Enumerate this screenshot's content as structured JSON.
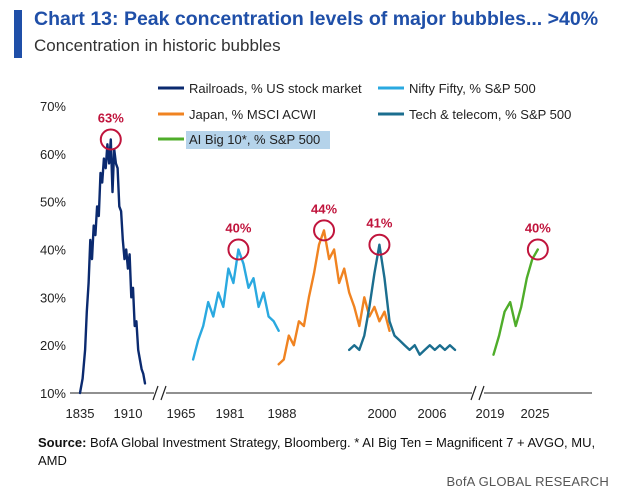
{
  "header": {
    "title": "Chart 13: Peak concentration levels of major bubbles... >40%",
    "subtitle": "Concentration in historic bubbles"
  },
  "footer": {
    "source_label": "Source:",
    "source_text": " BofA Global Investment Strategy, Bloomberg. * AI Big Ten = Magnificent 7 + AVGO, MU, AMD",
    "brand": "BofA GLOBAL RESEARCH"
  },
  "chart_data": {
    "type": "line",
    "title": "Chart 13: Peak concentration levels of major bubbles... >40%",
    "subtitle": "Concentration in historic bubbles",
    "xlabel": "",
    "ylabel": "",
    "ylim": [
      10,
      70
    ],
    "y_ticks": [
      "10%",
      "20%",
      "30%",
      "40%",
      "50%",
      "60%",
      "70%"
    ],
    "x_ticks": [
      "1835",
      "1910",
      "1965",
      "1981",
      "1988",
      "2000",
      "2006",
      "2019",
      "2025"
    ],
    "x_axis_broken": true,
    "grid": false,
    "legend_position": "top",
    "series": [
      {
        "name": "Railroads, % US stock market",
        "color": "#0b2a6f",
        "peak_label": "63%",
        "points": [
          [
            1835,
            10
          ],
          [
            1838,
            13
          ],
          [
            1841,
            19
          ],
          [
            1843,
            27
          ],
          [
            1845,
            33
          ],
          [
            1847,
            42
          ],
          [
            1849,
            38
          ],
          [
            1851,
            45
          ],
          [
            1853,
            43
          ],
          [
            1855,
            49
          ],
          [
            1857,
            47
          ],
          [
            1859,
            56
          ],
          [
            1861,
            54
          ],
          [
            1863,
            59
          ],
          [
            1865,
            57
          ],
          [
            1867,
            62
          ],
          [
            1869,
            58
          ],
          [
            1871,
            63
          ],
          [
            1873,
            52
          ],
          [
            1875,
            61
          ],
          [
            1877,
            58
          ],
          [
            1879,
            57
          ],
          [
            1881,
            49
          ],
          [
            1883,
            48
          ],
          [
            1885,
            42
          ],
          [
            1887,
            38
          ],
          [
            1889,
            40
          ],
          [
            1891,
            36
          ],
          [
            1893,
            39
          ],
          [
            1895,
            30
          ],
          [
            1897,
            32
          ],
          [
            1899,
            24
          ],
          [
            1901,
            25
          ],
          [
            1903,
            19
          ],
          [
            1905,
            17
          ],
          [
            1907,
            15
          ],
          [
            1909,
            14
          ],
          [
            1911,
            12
          ]
        ]
      },
      {
        "name": "Nifty Fifty, % S&P 500",
        "color": "#2aa9e0",
        "peak_label": "40%",
        "points": [
          [
            1963,
            17
          ],
          [
            1964,
            21
          ],
          [
            1965,
            24
          ],
          [
            1966,
            29
          ],
          [
            1967,
            26
          ],
          [
            1968,
            31
          ],
          [
            1969,
            28
          ],
          [
            1970,
            36
          ],
          [
            1971,
            33
          ],
          [
            1972,
            40
          ],
          [
            1973,
            37
          ],
          [
            1974,
            32
          ],
          [
            1975,
            34
          ],
          [
            1976,
            28
          ],
          [
            1977,
            31
          ],
          [
            1978,
            26
          ],
          [
            1979,
            25
          ],
          [
            1980,
            23
          ]
        ]
      },
      {
        "name": "Japan, % MSCI ACWI",
        "color": "#f08321",
        "peak_label": "44%",
        "points": [
          [
            1980,
            16
          ],
          [
            1981,
            17
          ],
          [
            1982,
            22
          ],
          [
            1983,
            20
          ],
          [
            1984,
            25
          ],
          [
            1985,
            24
          ],
          [
            1986,
            30
          ],
          [
            1987,
            35
          ],
          [
            1988,
            41
          ],
          [
            1989,
            44
          ],
          [
            1990,
            38
          ],
          [
            1991,
            40
          ],
          [
            1992,
            33
          ],
          [
            1993,
            36
          ],
          [
            1994,
            31
          ],
          [
            1995,
            28
          ],
          [
            1996,
            24
          ],
          [
            1997,
            30
          ],
          [
            1998,
            26
          ],
          [
            1999,
            28
          ],
          [
            2000,
            25
          ],
          [
            2001,
            27
          ],
          [
            2002,
            23
          ]
        ]
      },
      {
        "name": "Tech & telecom, % S&P 500",
        "color": "#1b6e8f",
        "peak_label": "41%",
        "points": [
          [
            1994,
            19
          ],
          [
            1995,
            20
          ],
          [
            1996,
            19
          ],
          [
            1997,
            22
          ],
          [
            1998,
            28
          ],
          [
            1999,
            35
          ],
          [
            2000,
            41
          ],
          [
            2001,
            34
          ],
          [
            2002,
            25
          ],
          [
            2003,
            22
          ],
          [
            2004,
            21
          ],
          [
            2005,
            20
          ],
          [
            2006,
            19
          ],
          [
            2007,
            20
          ],
          [
            2008,
            18
          ],
          [
            2009,
            19
          ],
          [
            2010,
            20
          ],
          [
            2011,
            19
          ],
          [
            2012,
            20
          ],
          [
            2013,
            19
          ],
          [
            2014,
            20
          ],
          [
            2015,
            19
          ]
        ]
      },
      {
        "name": "AI Big 10*, % S&P 500",
        "color": "#4fad2a",
        "peak_label": "40%",
        "points": [
          [
            2018,
            18
          ],
          [
            2019,
            22
          ],
          [
            2020,
            27
          ],
          [
            2021,
            29
          ],
          [
            2022,
            24
          ],
          [
            2023,
            28
          ],
          [
            2024,
            34
          ],
          [
            2025,
            38
          ],
          [
            2026,
            40
          ]
        ]
      }
    ]
  }
}
